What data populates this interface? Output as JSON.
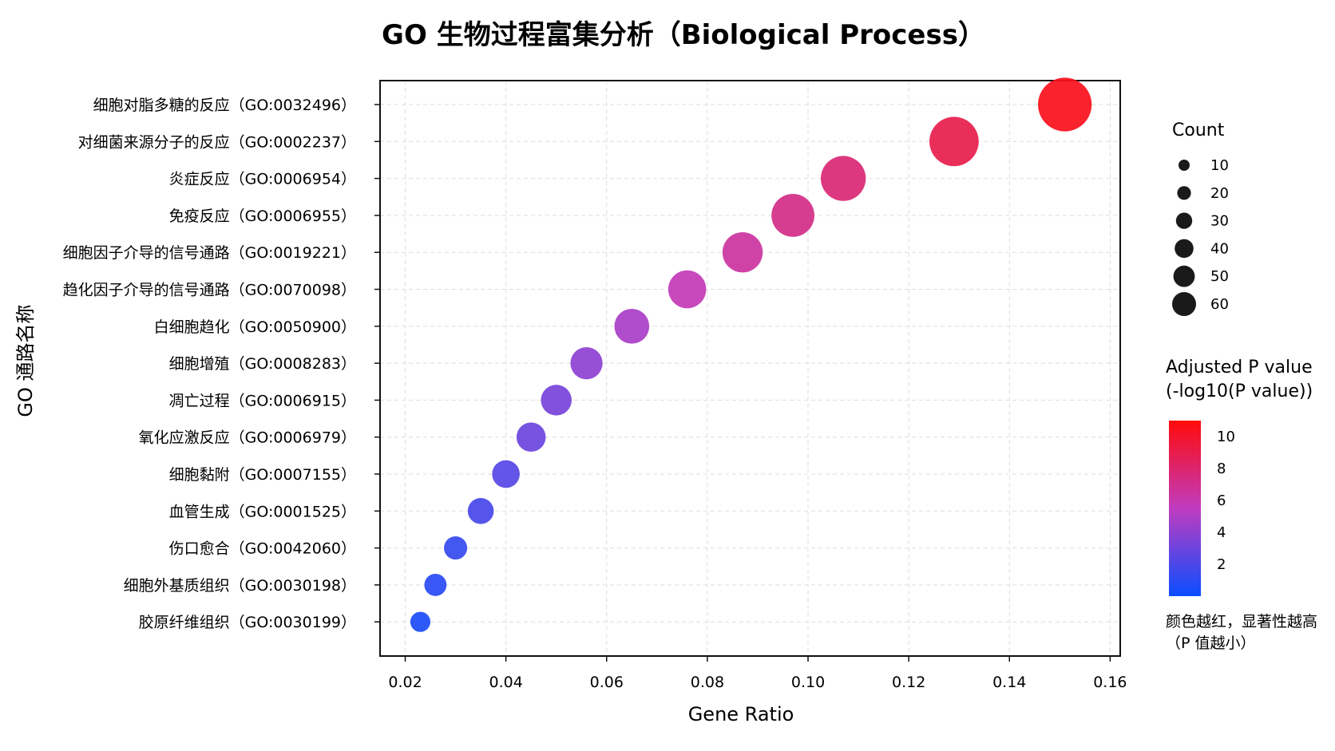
{
  "chart_data": {
    "type": "scatter",
    "title": "GO 生物过程富集分析（Biological Process）",
    "xlabel": "Gene Ratio",
    "ylabel": "GO 通路名称",
    "xlim": [
      0.015,
      0.162
    ],
    "x_ticks": [
      "0.02",
      "0.04",
      "0.06",
      "0.08",
      "0.10",
      "0.12",
      "0.14",
      "0.16"
    ],
    "x_tick_values": [
      0.02,
      0.04,
      0.06,
      0.08,
      0.1,
      0.12,
      0.14,
      0.16
    ],
    "grid": true,
    "categories": [
      "细胞对脂多糖的反应（GO:0032496）",
      "对细菌来源分子的反应（GO:0002237）",
      "炎症反应（GO:0006954）",
      "免疫反应（GO:0006955）",
      "细胞因子介导的信号通路（GO:0019221）",
      "趋化因子介导的信号通路（GO:0070098）",
      "白细胞趋化（GO:0050900）",
      "细胞增殖（GO:0008283）",
      "凋亡过程（GO:0006915）",
      "氧化应激反应（GO:0006979）",
      "细胞黏附（GO:0007155）",
      "血管生成（GO:0001525）",
      "伤口愈合（GO:0042060）",
      "细胞外基质组织（GO:0030198）",
      "胶原纤维组织（GO:0030199）"
    ],
    "points": [
      {
        "gene_ratio": 0.151,
        "count": 64,
        "neg_log10_p": 10.5
      },
      {
        "gene_ratio": 0.129,
        "count": 54,
        "neg_log10_p": 9.0
      },
      {
        "gene_ratio": 0.107,
        "count": 45,
        "neg_log10_p": 7.8
      },
      {
        "gene_ratio": 0.097,
        "count": 41,
        "neg_log10_p": 7.2
      },
      {
        "gene_ratio": 0.087,
        "count": 36,
        "neg_log10_p": 6.5
      },
      {
        "gene_ratio": 0.076,
        "count": 32,
        "neg_log10_p": 5.8
      },
      {
        "gene_ratio": 0.065,
        "count": 27,
        "neg_log10_p": 4.8
      },
      {
        "gene_ratio": 0.056,
        "count": 23,
        "neg_log10_p": 4.0
      },
      {
        "gene_ratio": 0.05,
        "count": 21,
        "neg_log10_p": 3.3
      },
      {
        "gene_ratio": 0.045,
        "count": 19,
        "neg_log10_p": 2.9
      },
      {
        "gene_ratio": 0.04,
        "count": 17,
        "neg_log10_p": 2.3
      },
      {
        "gene_ratio": 0.035,
        "count": 15,
        "neg_log10_p": 1.8
      },
      {
        "gene_ratio": 0.03,
        "count": 12,
        "neg_log10_p": 1.3
      },
      {
        "gene_ratio": 0.026,
        "count": 11,
        "neg_log10_p": 0.9
      },
      {
        "gene_ratio": 0.023,
        "count": 9,
        "neg_log10_p": 0.5
      }
    ],
    "size_legend": {
      "title": "Count",
      "labels": [
        "10",
        "20",
        "30",
        "40",
        "50",
        "60"
      ],
      "values": [
        10,
        20,
        30,
        40,
        50,
        60
      ]
    },
    "color_legend": {
      "title_line1": "Adjusted P value",
      "title_line2": "(-log10(P value))",
      "labels": [
        "10",
        "8",
        "6",
        "4",
        "2"
      ],
      "values": [
        10,
        8,
        6,
        4,
        2
      ],
      "range": [
        0,
        11
      ],
      "low_color": "#0a4dff",
      "mid_color": "#c03cc0",
      "high_color": "#ff0a0a"
    },
    "note_line1": "颜色越红，显著性越高",
    "note_line2": "（P 值越小）"
  }
}
